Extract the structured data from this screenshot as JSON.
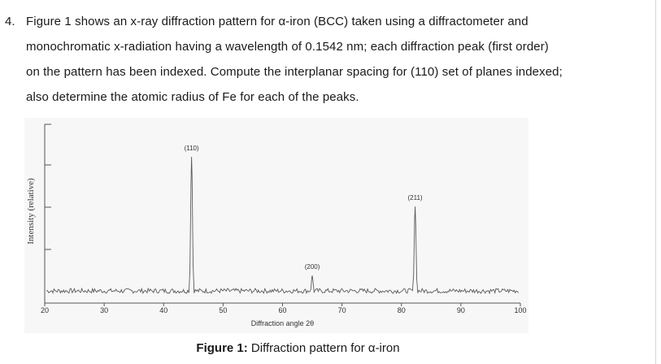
{
  "question": {
    "number": "4.",
    "lines": [
      "Figure 1 shows an x-ray diffraction pattern for α-iron (BCC) taken using a diffractometer and",
      "monochromatic x-radiation having a wavelength of 0.1542 nm; each diffraction peak (first order)",
      "on the pattern has been indexed. Compute the interplanar spacing for (110) set of planes indexed;",
      "also determine the atomic radius of Fe for each of the peaks."
    ]
  },
  "chart_data": {
    "type": "line",
    "xlabel": "Diffraction angle 2θ",
    "ylabel": "Intensity (relative)",
    "xlim": [
      20,
      100
    ],
    "x_ticks": [
      20,
      30,
      40,
      50,
      60,
      70,
      80,
      90,
      100
    ],
    "peaks": [
      {
        "label": "(110)",
        "two_theta": 44.7,
        "relative_intensity": 1.0
      },
      {
        "label": "(200)",
        "two_theta": 65.0,
        "relative_intensity": 0.14
      },
      {
        "label": "(211)",
        "two_theta": 82.3,
        "relative_intensity": 0.64
      }
    ],
    "colors": {
      "trace": "#5a5a5a",
      "axis": "#555555"
    }
  },
  "caption": {
    "prefix": "Figure 1:",
    "text": " Diffraction pattern for α-iron"
  }
}
